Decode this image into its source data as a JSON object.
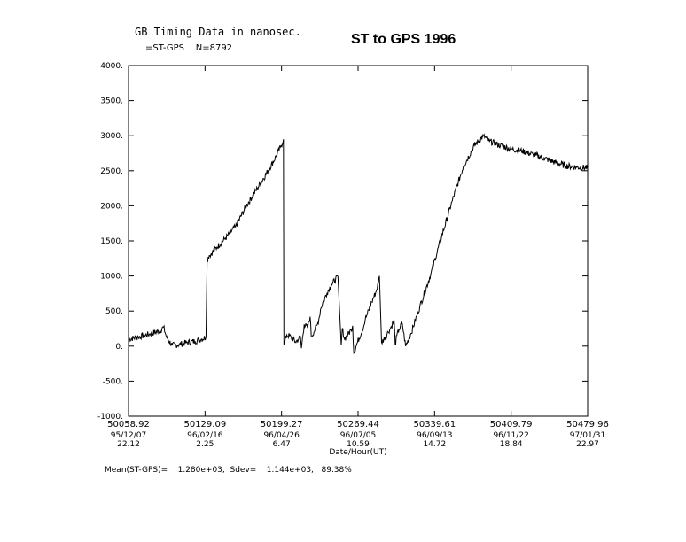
{
  "subtitle": "GB Timing Data in nanosec.",
  "series_label": "=ST-GPS    N=8792",
  "stats_line": "Mean(ST-GPS)=    1.280e+03,  Sdev=    1.144e+03,   89.38%",
  "chart_data": {
    "type": "line",
    "title": "ST to GPS 1996",
    "xlabel": "Date/Hour(UT)",
    "ylabel": "",
    "xlim": [
      50058.92,
      50479.96
    ],
    "ylim": [
      -1000,
      4000
    ],
    "grid": false,
    "y_ticks": [
      "-1000.",
      "-500.",
      "0.",
      "500.",
      "1000.",
      "1500.",
      "2000.",
      "2500.",
      "3000.",
      "3500.",
      "4000."
    ],
    "x_ticks": [
      {
        "mjd": "50058.92",
        "date": "95/12/07",
        "hour": "22.12"
      },
      {
        "mjd": "50129.09",
        "date": "96/02/16",
        "hour": "2.25"
      },
      {
        "mjd": "50199.27",
        "date": "96/04/26",
        "hour": "6.47"
      },
      {
        "mjd": "50269.44",
        "date": "96/07/05",
        "hour": "10.59"
      },
      {
        "mjd": "50339.61",
        "date": "96/09/13",
        "hour": "14.72"
      },
      {
        "mjd": "50409.79",
        "date": "96/11/22",
        "hour": "18.84"
      },
      {
        "mjd": "50479.96",
        "date": "97/01/31",
        "hour": "22.97"
      }
    ],
    "series": [
      {
        "color": "#000000",
        "x": [
          50058.92,
          50068,
          50078,
          50088,
          50091,
          50094,
          50099,
          50105,
          50112,
          50120,
          50126,
          50130,
          50131,
          50133,
          50140,
          50148,
          50157,
          50167,
          50177,
          50187,
          50194,
          50199,
          50201,
          50201.4,
          50204,
          50208,
          50212,
          50215,
          50216.5,
          50217.5,
          50220,
          50223,
          50225.5,
          50226.5,
          50230,
          50232,
          50234,
          50235,
          50237,
          50241,
          50245,
          50251,
          50254,
          50255,
          50257,
          50260,
          50263,
          50264.5,
          50265.5,
          50269,
          50275,
          50276,
          50278,
          50282,
          50286,
          50288,
          50289,
          50291,
          50297,
          50300,
          50302.5,
          50303.5,
          50305,
          50307,
          50310,
          50313,
          50318,
          50326,
          50336,
          50346,
          50356,
          50366,
          50376,
          50384,
          50386,
          50390,
          50400,
          50410,
          50420,
          50430,
          50440,
          50450,
          50460,
          50470,
          50479.96
        ],
        "y": [
          100,
          130,
          170,
          220,
          270,
          120,
          10,
          20,
          50,
          70,
          100,
          130,
          1230,
          1290,
          1410,
          1540,
          1700,
          2000,
          2250,
          2500,
          2700,
          2860,
          2950,
          20,
          160,
          130,
          60,
          100,
          140,
          -30,
          310,
          260,
          420,
          130,
          240,
          300,
          420,
          520,
          620,
          760,
          880,
          990,
          10,
          250,
          100,
          160,
          230,
          290,
          -100,
          60,
          300,
          380,
          460,
          630,
          780,
          900,
          1000,
          50,
          200,
          280,
          360,
          20,
          150,
          240,
          320,
          0,
          180,
          560,
          1020,
          1560,
          2080,
          2560,
          2860,
          2990,
          2980,
          2920,
          2860,
          2810,
          2780,
          2730,
          2680,
          2620,
          2570,
          2550,
          2540
        ]
      }
    ]
  }
}
